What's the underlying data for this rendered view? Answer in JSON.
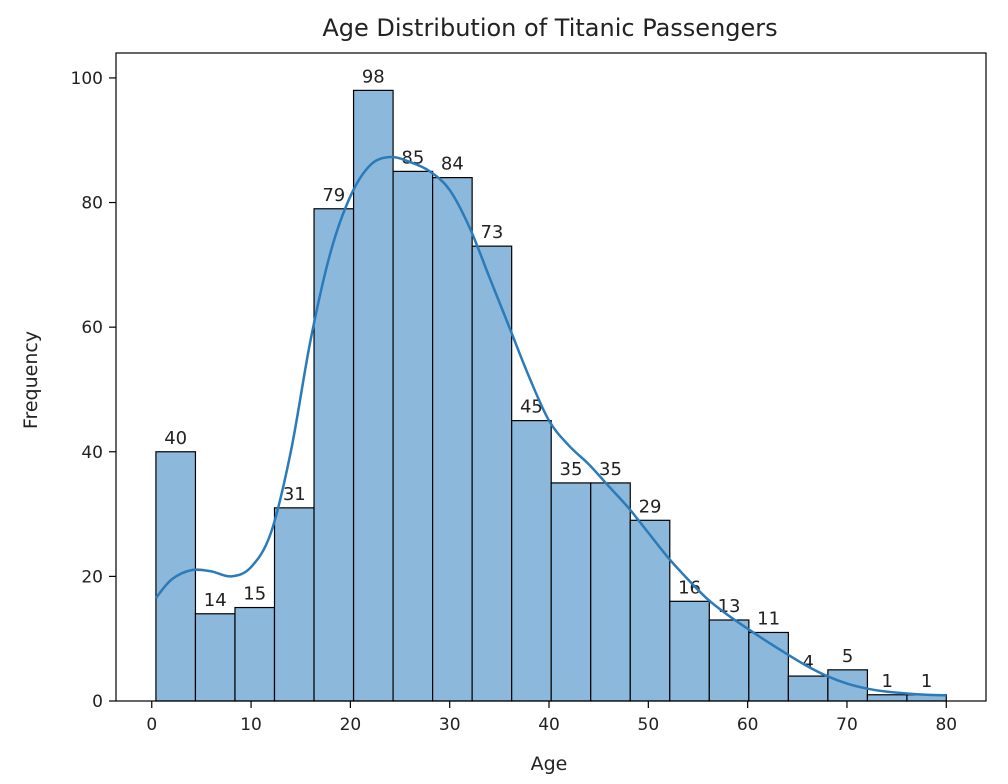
{
  "chart_data": {
    "type": "bar",
    "title": "Age Distribution of Titanic Passengers",
    "xlabel": "Age",
    "ylabel": "Frequency",
    "xlim": [
      -3.6,
      84.0
    ],
    "ylim": [
      0,
      104
    ],
    "xticks": [
      0,
      10,
      20,
      30,
      40,
      50,
      60,
      70,
      80
    ],
    "yticks": [
      0,
      20,
      40,
      60,
      80,
      100
    ],
    "bin_edges": [
      0.42,
      4.4,
      8.38,
      12.36,
      16.34,
      20.32,
      24.3,
      28.28,
      32.26,
      36.24,
      40.22,
      44.2,
      48.18,
      52.16,
      56.14,
      60.12,
      64.1,
      68.08,
      72.06,
      76.04,
      80.0
    ],
    "values": [
      40,
      14,
      15,
      31,
      79,
      98,
      85,
      84,
      73,
      45,
      35,
      35,
      29,
      16,
      13,
      11,
      4,
      5,
      1,
      1
    ],
    "kde": {
      "x": [
        0.4,
        2,
        4,
        6,
        8,
        10,
        12,
        14,
        16,
        18,
        20,
        22,
        24,
        26,
        28,
        30,
        32,
        34,
        36,
        38,
        40,
        42,
        44,
        46,
        48,
        50,
        52,
        54,
        56,
        58,
        60,
        62,
        64,
        66,
        68,
        70,
        72,
        74,
        76,
        78,
        80
      ],
      "y": [
        16.5,
        19.5,
        21.0,
        20.8,
        20.0,
        21.5,
        27.0,
        40.0,
        58.0,
        72.0,
        81.0,
        86.0,
        87.3,
        86.5,
        85.0,
        82.0,
        76.0,
        68.0,
        60.0,
        52.0,
        45.0,
        41.0,
        38.0,
        34.5,
        31.0,
        27.0,
        23.0,
        19.5,
        16.3,
        13.8,
        11.6,
        9.5,
        7.5,
        5.6,
        4.0,
        2.8,
        2.0,
        1.5,
        1.2,
        1.0,
        0.9
      ]
    },
    "bar_color": "#8bb8db",
    "bar_edge_color": "#000000",
    "line_color": "#2b7bba",
    "grid": false,
    "legend": "none"
  }
}
